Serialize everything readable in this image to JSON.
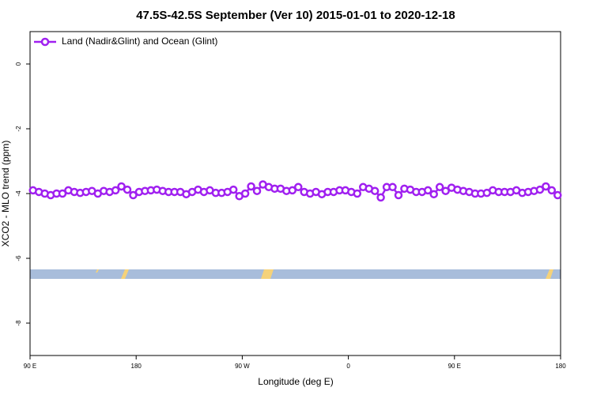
{
  "chart_data": {
    "type": "line",
    "title": "47.5S-42.5S September (Ver 10)   2015-01-01 to 2020-12-18",
    "xlabel": "Longitude (deg E)",
    "ylabel": "XCO2 - MLO trend (ppm)",
    "xlim": [
      90,
      540
    ],
    "ylim": [
      -9,
      1
    ],
    "xticks": [
      {
        "value": 90,
        "label": "90 E"
      },
      {
        "value": 180,
        "label": "180"
      },
      {
        "value": 270,
        "label": "90 W"
      },
      {
        "value": 360,
        "label": "0"
      },
      {
        "value": 450,
        "label": "90 E"
      },
      {
        "value": 540,
        "label": "180"
      }
    ],
    "yticks": [
      0,
      -2,
      -4,
      -6,
      -8
    ],
    "legend": "top-left",
    "x": [
      92.5,
      97.5,
      102.5,
      107.5,
      112.5,
      117.5,
      122.5,
      127.5,
      132.5,
      137.5,
      142.5,
      147.5,
      152.5,
      157.5,
      162.5,
      167.5,
      172.5,
      177.5,
      182.5,
      187.5,
      192.5,
      197.5,
      202.5,
      207.5,
      212.5,
      217.5,
      222.5,
      227.5,
      232.5,
      237.5,
      242.5,
      247.5,
      252.5,
      257.5,
      262.5,
      267.5,
      272.5,
      277.5,
      282.5,
      287.5,
      292.5,
      297.5,
      302.5,
      307.5,
      312.5,
      317.5,
      322.5,
      327.5,
      332.5,
      337.5,
      342.5,
      347.5,
      352.5,
      357.5,
      362.5,
      367.5,
      372.5,
      377.5,
      382.5,
      387.5,
      392.5,
      397.5,
      402.5,
      407.5,
      412.5,
      417.5,
      422.5,
      427.5,
      432.5,
      437.5,
      442.5,
      447.5,
      452.5,
      457.5,
      462.5,
      467.5,
      472.5,
      477.5,
      482.5,
      487.5,
      492.5,
      497.5,
      502.5,
      507.5,
      512.5,
      517.5,
      522.5,
      527.5,
      532.5,
      537.5
    ],
    "series": [
      {
        "name": "Land (Nadir&Glint) and Ocean (Glint)",
        "color": "#a020f0",
        "values": [
          -3.9,
          -3.95,
          -4.0,
          -4.05,
          -4.0,
          -4.0,
          -3.9,
          -3.95,
          -3.98,
          -3.95,
          -3.92,
          -4.0,
          -3.92,
          -3.95,
          -3.9,
          -3.78,
          -3.88,
          -4.05,
          -3.95,
          -3.92,
          -3.9,
          -3.88,
          -3.92,
          -3.95,
          -3.95,
          -3.95,
          -4.02,
          -3.95,
          -3.88,
          -3.95,
          -3.9,
          -3.98,
          -3.98,
          -3.95,
          -3.88,
          -4.08,
          -4.0,
          -3.78,
          -3.92,
          -3.72,
          -3.8,
          -3.85,
          -3.85,
          -3.92,
          -3.9,
          -3.8,
          -3.95,
          -4.0,
          -3.95,
          -4.02,
          -3.95,
          -3.95,
          -3.9,
          -3.9,
          -3.95,
          -4.0,
          -3.8,
          -3.85,
          -3.92,
          -4.12,
          -3.8,
          -3.8,
          -4.05,
          -3.85,
          -3.88,
          -3.95,
          -3.95,
          -3.9,
          -4.02,
          -3.8,
          -3.92,
          -3.82,
          -3.88,
          -3.92,
          -3.95,
          -4.0,
          -4.0,
          -3.98,
          -3.9,
          -3.95,
          -3.95,
          -3.95,
          -3.9,
          -3.98,
          -3.95,
          -3.92,
          -3.88,
          -3.78,
          -3.9,
          -4.05
        ]
      }
    ]
  }
}
